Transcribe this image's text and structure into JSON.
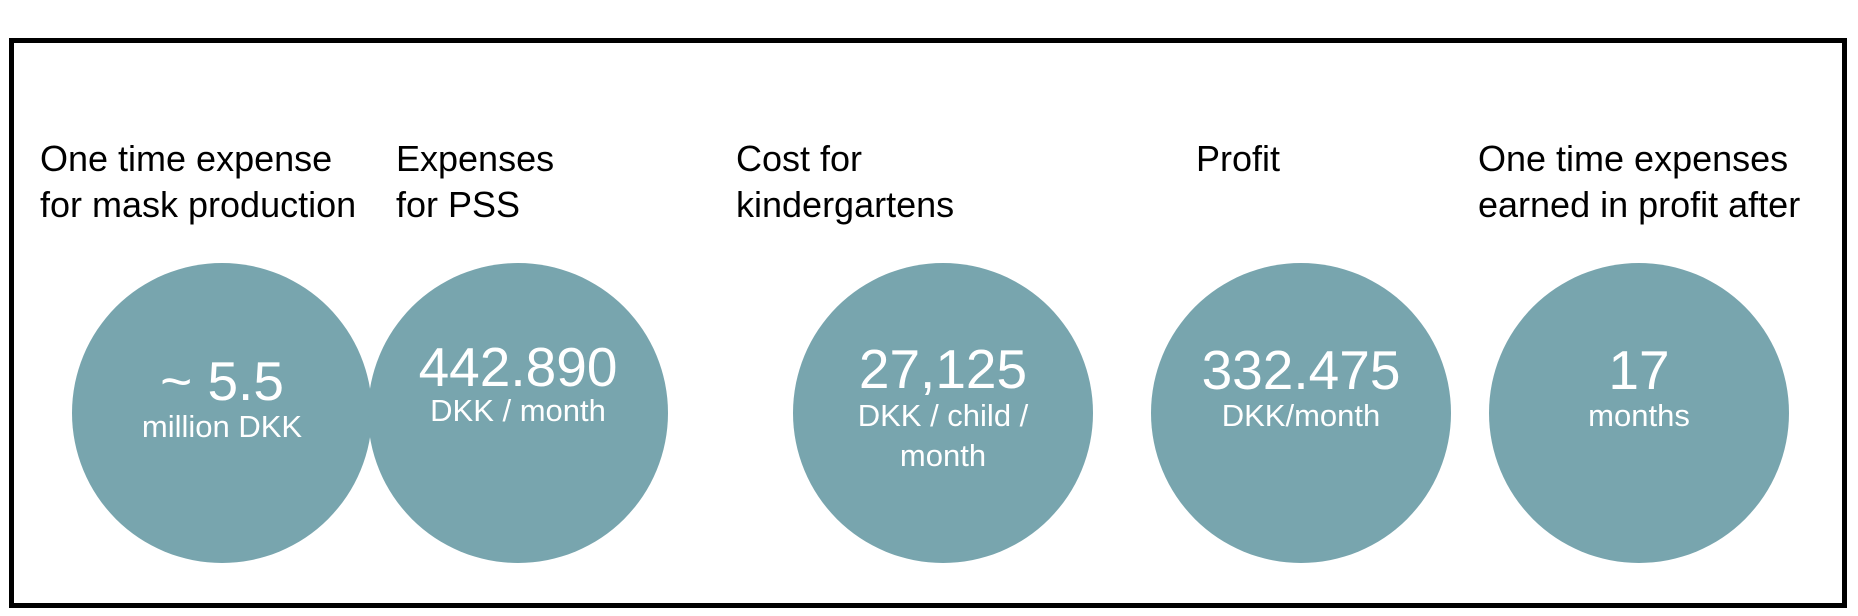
{
  "metrics": [
    {
      "label_lines": [
        "One time expense",
        "for mask production"
      ],
      "value": "~ 5.5",
      "unit_lines": [
        "million DKK"
      ]
    },
    {
      "label_lines": [
        "Expenses",
        "for PSS"
      ],
      "value": "442.890",
      "unit_lines": [
        "DKK / month"
      ]
    },
    {
      "label_lines": [
        "Cost for",
        "kindergartens"
      ],
      "value": "27,125",
      "unit_lines": [
        "DKK / child /",
        "month"
      ]
    },
    {
      "label_lines": [
        "Profit"
      ],
      "value": "332.475",
      "unit_lines": [
        "DKK/month"
      ]
    },
    {
      "label_lines": [
        "One time expenses",
        "earned in profit after"
      ],
      "value": "17",
      "unit_lines": [
        "months"
      ]
    }
  ],
  "colors": {
    "circle_fill": "#78a5ae",
    "circle_text": "#ffffff",
    "frame_border": "#000000"
  }
}
